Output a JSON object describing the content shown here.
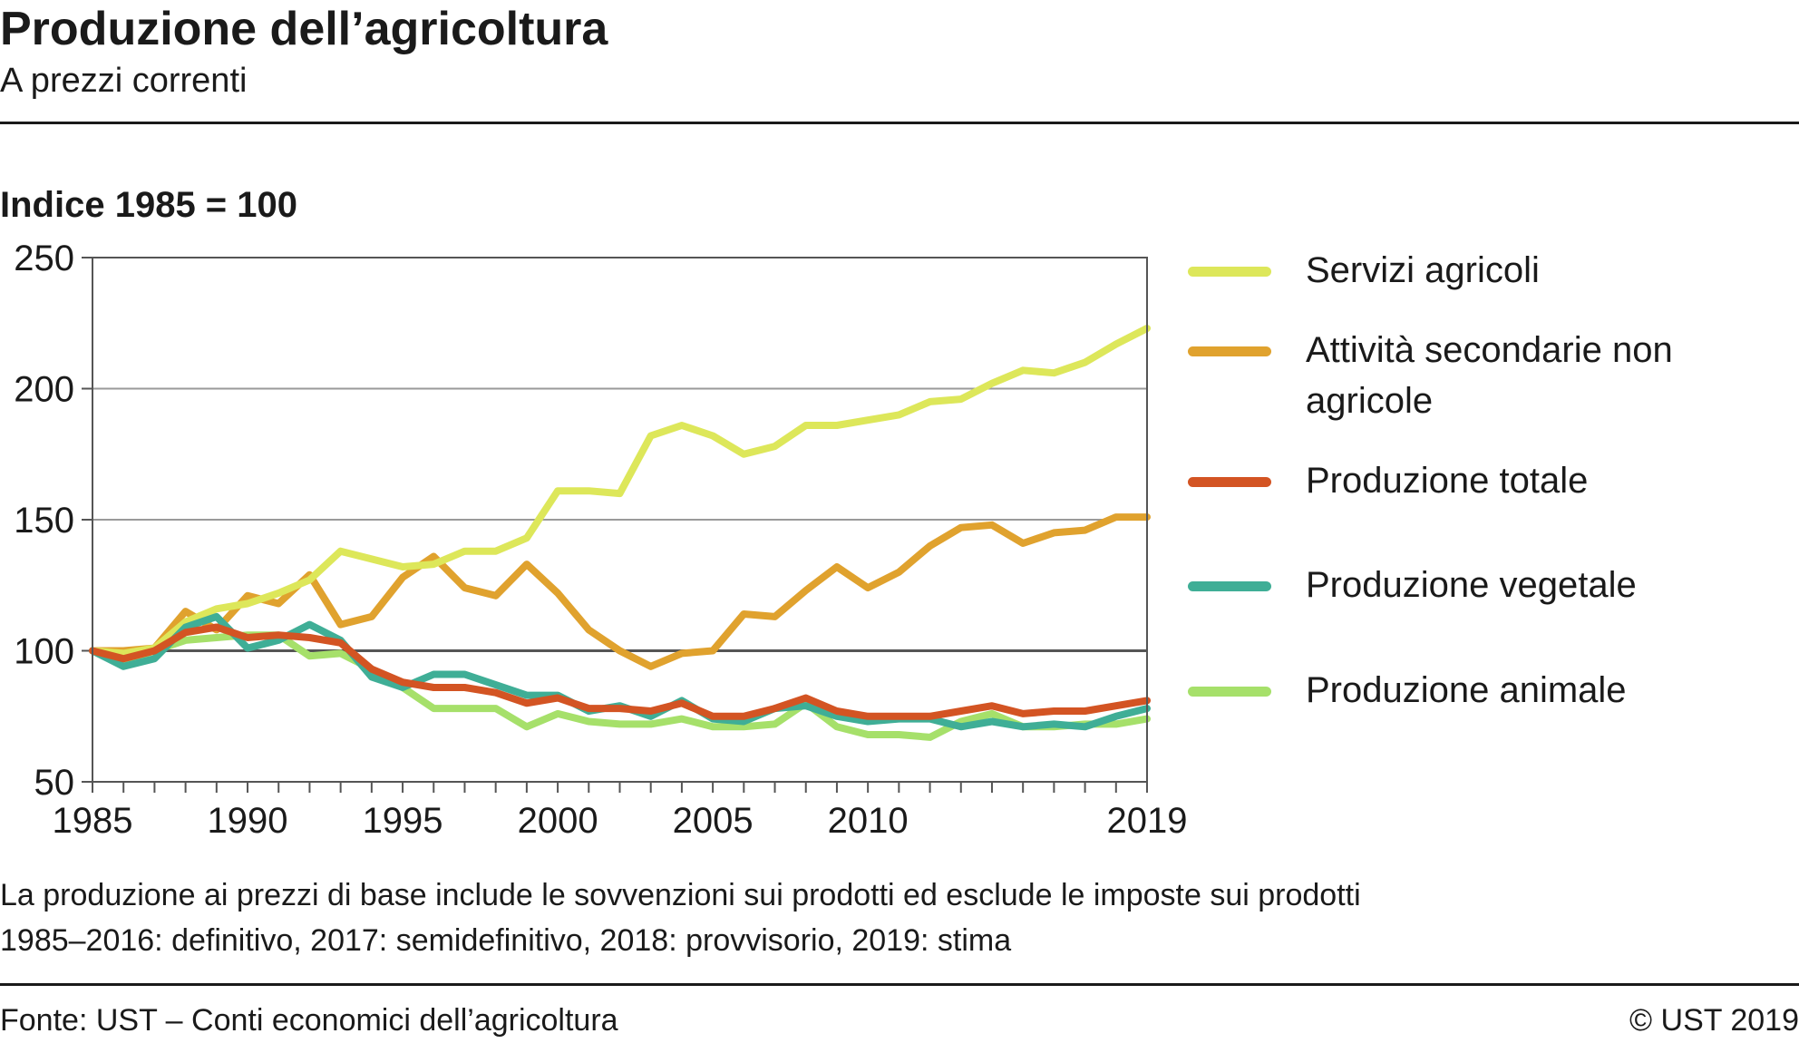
{
  "header": {
    "title": "Produzione dell’agricoltura",
    "subtitle": "A prezzi correnti"
  },
  "chart_data": {
    "type": "line",
    "ylabel": "Indice 1985 = 100",
    "ylim": [
      50,
      250
    ],
    "xlim": [
      1985,
      2019
    ],
    "yticks": [
      50,
      100,
      150,
      200,
      250
    ],
    "xticks": [
      "1985",
      "1990",
      "1995",
      "2000",
      "2005",
      "2010",
      "2019"
    ],
    "grid": "horizontal",
    "legend_position": "right",
    "x": [
      1985,
      1986,
      1987,
      1988,
      1989,
      1990,
      1991,
      1992,
      1993,
      1994,
      1995,
      1996,
      1997,
      1998,
      1999,
      2000,
      2001,
      2002,
      2003,
      2004,
      2005,
      2006,
      2007,
      2008,
      2009,
      2010,
      2011,
      2012,
      2013,
      2014,
      2015,
      2016,
      2017,
      2018,
      2019
    ],
    "series": [
      {
        "name": "Servizi agricoli",
        "color": "#dde75a",
        "values": [
          100,
          99,
          101,
          111,
          116,
          118,
          122,
          127,
          138,
          135,
          132,
          133,
          138,
          138,
          143,
          161,
          161,
          160,
          182,
          186,
          182,
          175,
          178,
          186,
          186,
          188,
          190,
          195,
          196,
          202,
          207,
          206,
          210,
          217,
          223
        ]
      },
      {
        "name": "Attività secondarie non agricole",
        "color": "#e0a22e",
        "values": [
          100,
          100,
          101,
          115,
          108,
          121,
          118,
          129,
          110,
          113,
          128,
          136,
          124,
          121,
          133,
          122,
          108,
          100,
          94,
          99,
          100,
          114,
          113,
          123,
          132,
          124,
          130,
          140,
          147,
          148,
          141,
          145,
          146,
          151,
          151
        ]
      },
      {
        "name": "Produzione totale",
        "color": "#d35423",
        "values": [
          100,
          97,
          100,
          107,
          109,
          105,
          106,
          105,
          103,
          93,
          88,
          86,
          86,
          84,
          80,
          82,
          78,
          78,
          77,
          80,
          75,
          75,
          78,
          82,
          77,
          75,
          75,
          75,
          77,
          79,
          76,
          77,
          77,
          79,
          81
        ]
      },
      {
        "name": "Produzione vegetale",
        "color": "#3fae96",
        "values": [
          100,
          94,
          97,
          109,
          113,
          101,
          104,
          110,
          104,
          90,
          86,
          91,
          91,
          87,
          83,
          83,
          77,
          79,
          75,
          81,
          74,
          73,
          78,
          79,
          75,
          73,
          74,
          74,
          71,
          73,
          71,
          72,
          71,
          75,
          78
        ]
      },
      {
        "name": "Produzione animale",
        "color": "#a6e06a",
        "values": [
          100,
          96,
          100,
          104,
          105,
          106,
          106,
          98,
          99,
          93,
          86,
          78,
          78,
          78,
          71,
          76,
          73,
          72,
          72,
          74,
          71,
          71,
          72,
          80,
          71,
          68,
          68,
          67,
          73,
          76,
          71,
          71,
          72,
          72,
          74
        ]
      }
    ]
  },
  "notes": {
    "line1": "La produzione ai prezzi di base include le sovvenzioni sui prodotti ed esclude le imposte sui prodotti",
    "line2": "1985–2016: definitivo, 2017: semidefinitivo, 2018: provvisorio, 2019: stima"
  },
  "footer": {
    "source": "Fonte: UST – Conti economici dell’agricoltura",
    "copyright": "© UST 2019"
  }
}
